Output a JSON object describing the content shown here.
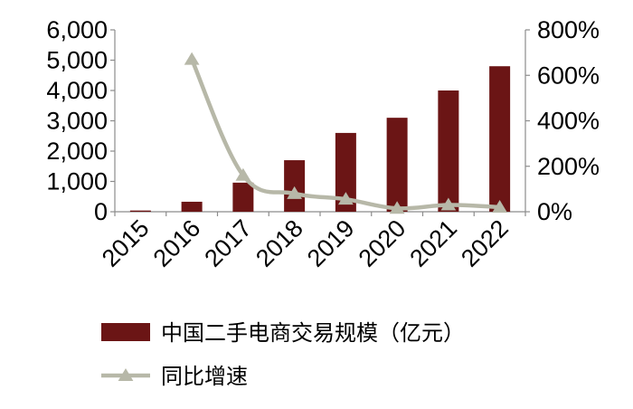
{
  "chart_data": {
    "type": "bar",
    "categories": [
      "2015",
      "2016",
      "2017",
      "2018",
      "2019",
      "2020",
      "2021",
      "2022"
    ],
    "series": [
      {
        "name": "中国二手电商交易规模（亿元）",
        "type": "bar",
        "axis": "left",
        "color": "#6b1515",
        "values": [
          40,
          330,
          960,
          1700,
          2600,
          3100,
          4000,
          4800
        ]
      },
      {
        "name": "同比增速",
        "type": "line",
        "axis": "right",
        "color": "#b7b8a8",
        "marker": "triangle",
        "values": [
          null,
          670,
          160,
          80,
          55,
          15,
          30,
          20
        ]
      }
    ],
    "y_left": {
      "ylim": [
        0,
        6000
      ],
      "ticks": [
        0,
        1000,
        2000,
        3000,
        4000,
        5000,
        6000
      ],
      "tick_labels": [
        "0",
        "1,000",
        "2,000",
        "3,000",
        "4,000",
        "5,000",
        "6,000"
      ]
    },
    "y_right": {
      "ylim": [
        0,
        800
      ],
      "ticks": [
        0,
        200,
        400,
        600,
        800
      ],
      "tick_labels": [
        "0%",
        "200%",
        "400%",
        "600%",
        "800%"
      ]
    },
    "grid": false,
    "legend_position": "bottom"
  }
}
